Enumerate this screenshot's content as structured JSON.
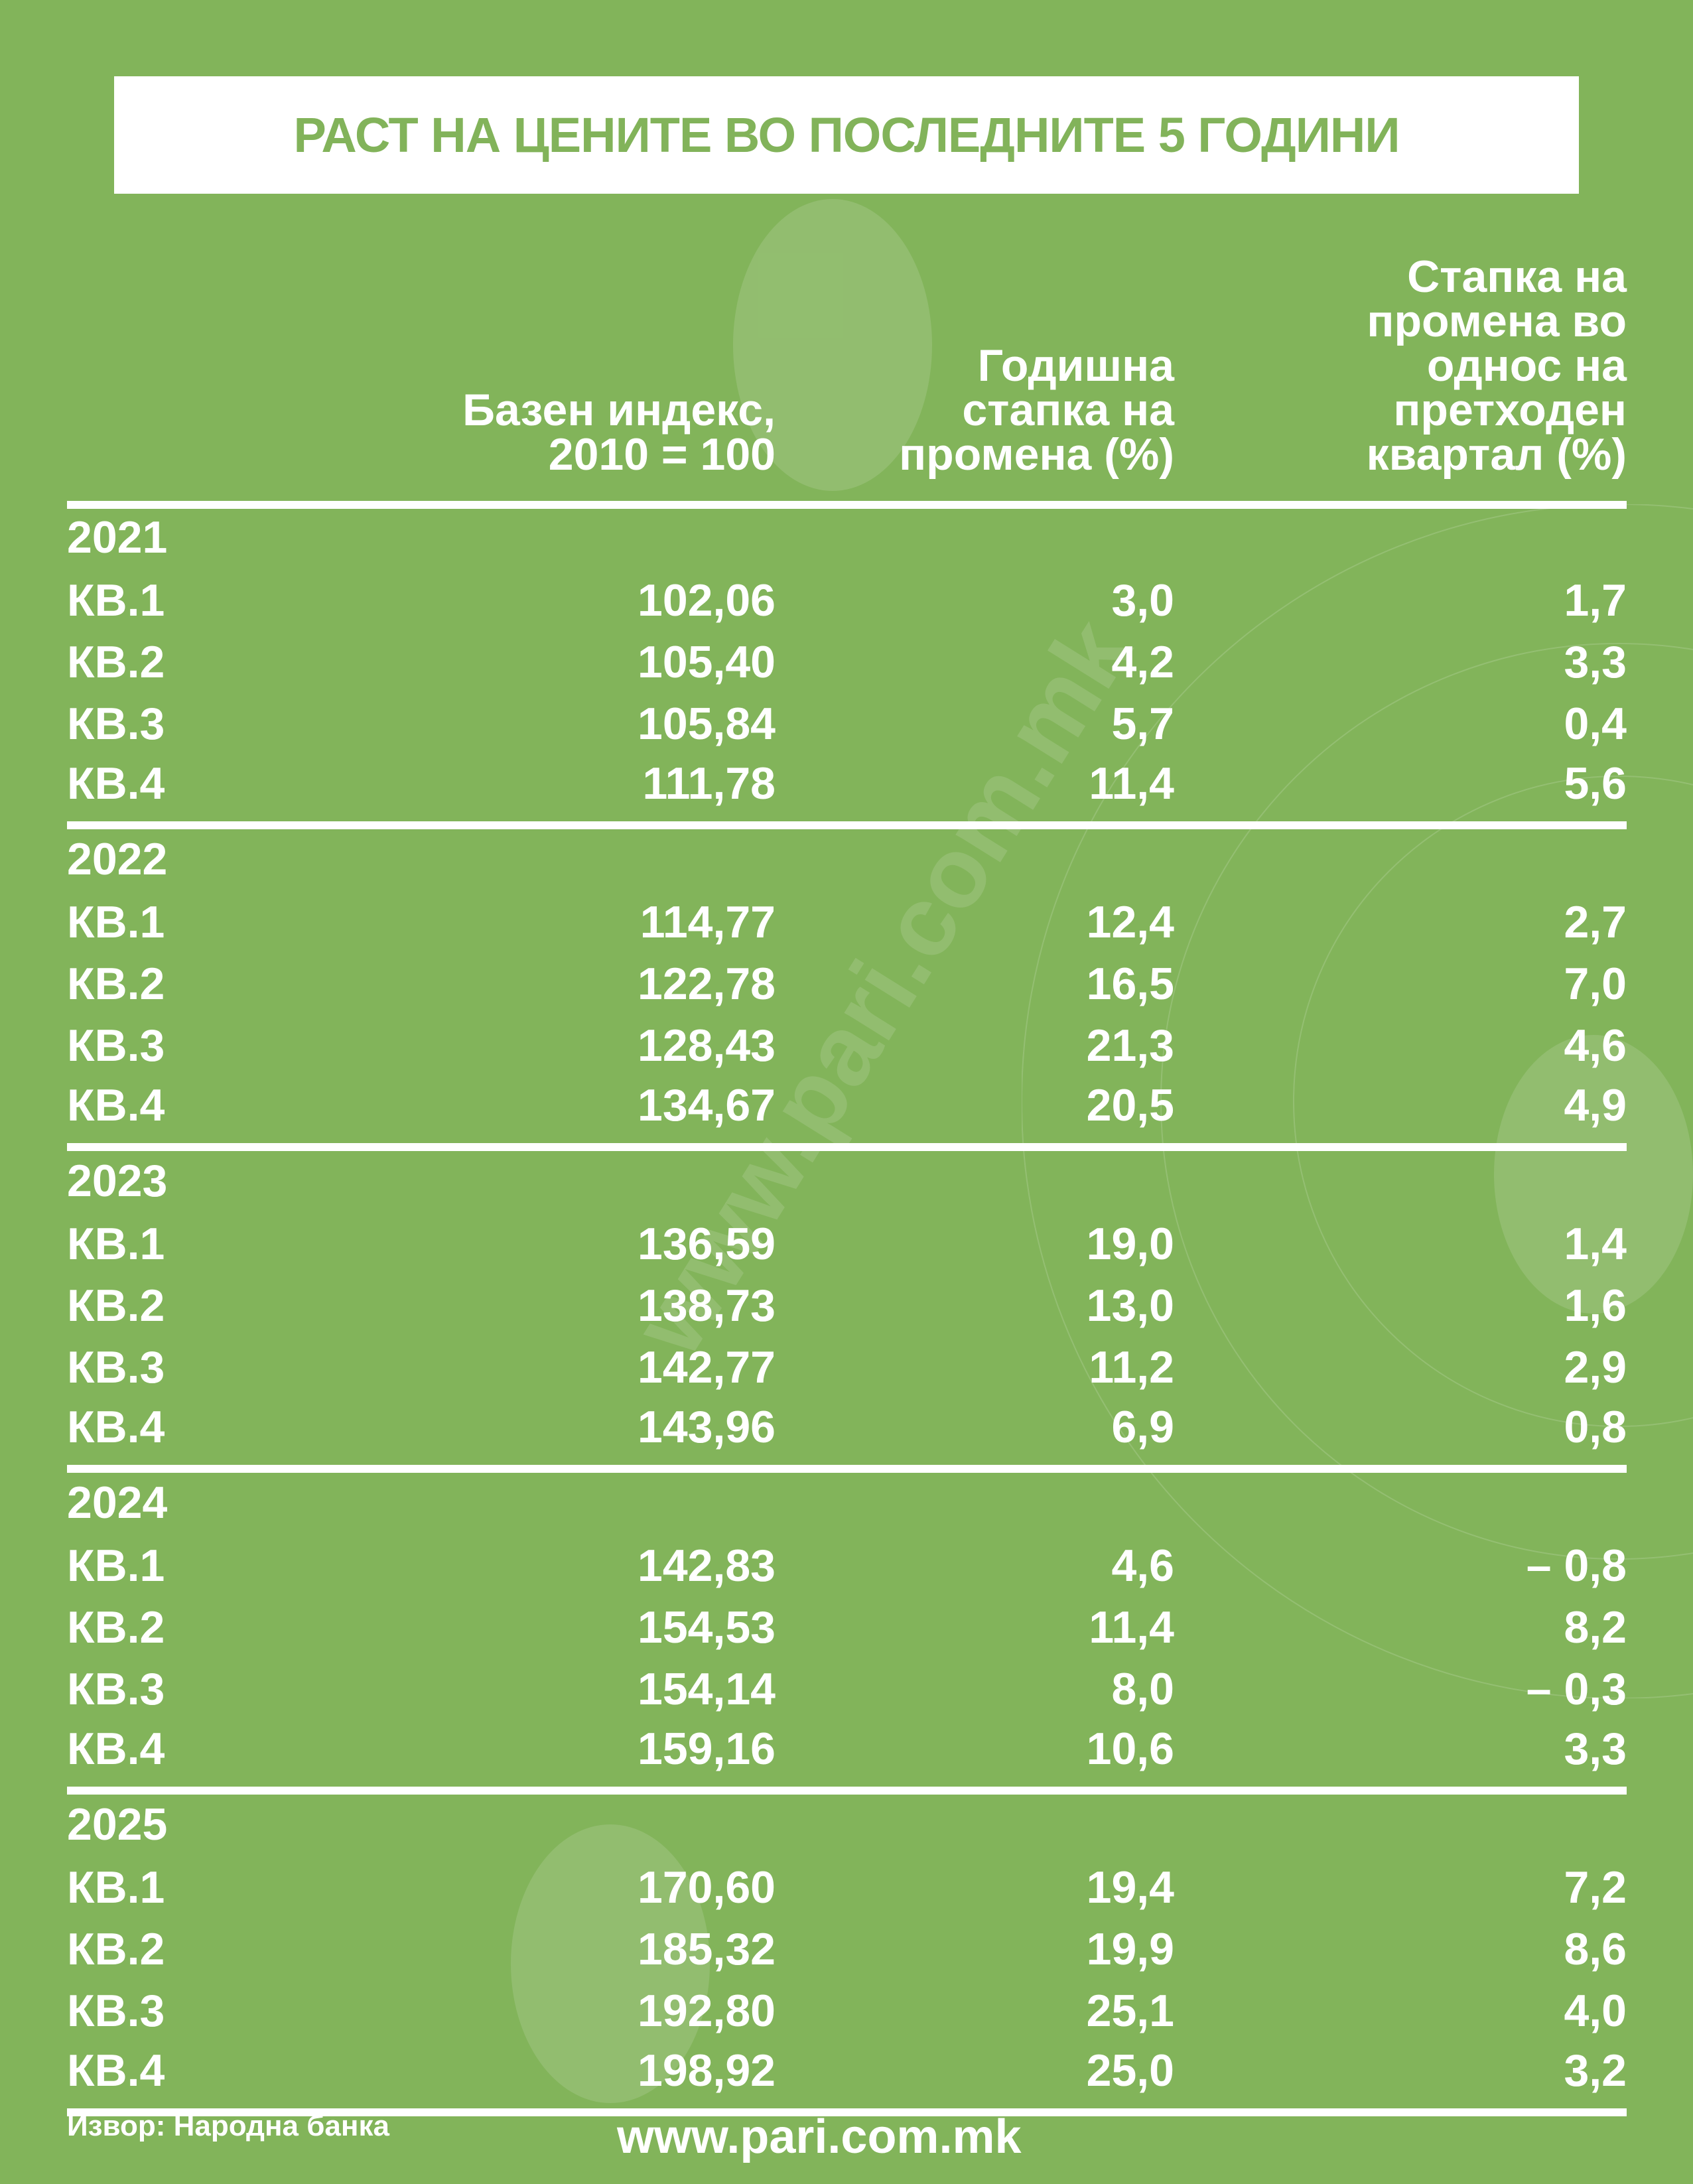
{
  "title": "РАСТ НА ЦЕНИТЕ ВО ПОСЛЕДНИТЕ 5 ГОДИНИ",
  "colors": {
    "background": "#82b45a",
    "title_text": "#82b35a",
    "text": "#ffffff"
  },
  "columns": [
    "Базен индекс,\n2010 = 100",
    "Годишна\nстапка на\nпромена (%)",
    "Стапка на\nпромена во\nоднос на\nпретходен\nквартал (%)"
  ],
  "years": [
    {
      "year": "2021",
      "rows": [
        {
          "q": "КВ.1",
          "index": "102,06",
          "annual": "3,0",
          "quarterly": "1,7"
        },
        {
          "q": "КВ.2",
          "index": "105,40",
          "annual": "4,2",
          "quarterly": "3,3"
        },
        {
          "q": "КВ.3",
          "index": "105,84",
          "annual": "5,7",
          "quarterly": "0,4"
        },
        {
          "q": "КВ.4",
          "index": "111,78",
          "annual": "11,4",
          "quarterly": "5,6"
        }
      ]
    },
    {
      "year": "2022",
      "rows": [
        {
          "q": "КВ.1",
          "index": "114,77",
          "annual": "12,4",
          "quarterly": "2,7"
        },
        {
          "q": "КВ.2",
          "index": "122,78",
          "annual": "16,5",
          "quarterly": "7,0"
        },
        {
          "q": "КВ.3",
          "index": "128,43",
          "annual": "21,3",
          "quarterly": "4,6"
        },
        {
          "q": "КВ.4",
          "index": "134,67",
          "annual": "20,5",
          "quarterly": "4,9"
        }
      ]
    },
    {
      "year": "2023",
      "rows": [
        {
          "q": "КВ.1",
          "index": "136,59",
          "annual": "19,0",
          "quarterly": "1,4"
        },
        {
          "q": "КВ.2",
          "index": "138,73",
          "annual": "13,0",
          "quarterly": "1,6"
        },
        {
          "q": "КВ.3",
          "index": "142,77",
          "annual": "11,2",
          "quarterly": "2,9"
        },
        {
          "q": "КВ.4",
          "index": "143,96",
          "annual": "6,9",
          "quarterly": "0,8"
        }
      ]
    },
    {
      "year": "2024",
      "rows": [
        {
          "q": "КВ.1",
          "index": "142,83",
          "annual": "4,6",
          "quarterly": "– 0,8"
        },
        {
          "q": "КВ.2",
          "index": "154,53",
          "annual": "11,4",
          "quarterly": "8,2"
        },
        {
          "q": "КВ.3",
          "index": "154,14",
          "annual": "8,0",
          "quarterly": "– 0,3"
        },
        {
          "q": "КВ.4",
          "index": "159,16",
          "annual": "10,6",
          "quarterly": "3,3"
        }
      ]
    },
    {
      "year": "2025",
      "rows": [
        {
          "q": "КВ.1",
          "index": "170,60",
          "annual": "19,4",
          "quarterly": "7,2"
        },
        {
          "q": "КВ.2",
          "index": "185,32",
          "annual": "19,9",
          "quarterly": "8,6"
        },
        {
          "q": "КВ.3",
          "index": "192,80",
          "annual": "25,1",
          "quarterly": "4,0"
        },
        {
          "q": "КВ.4",
          "index": "198,92",
          "annual": "25,0",
          "quarterly": "3,2"
        }
      ]
    }
  ],
  "footer": {
    "source": "Извор: Народна банка",
    "website": "www.pari.com.mk"
  },
  "watermark": "www.pari.com.mk"
}
